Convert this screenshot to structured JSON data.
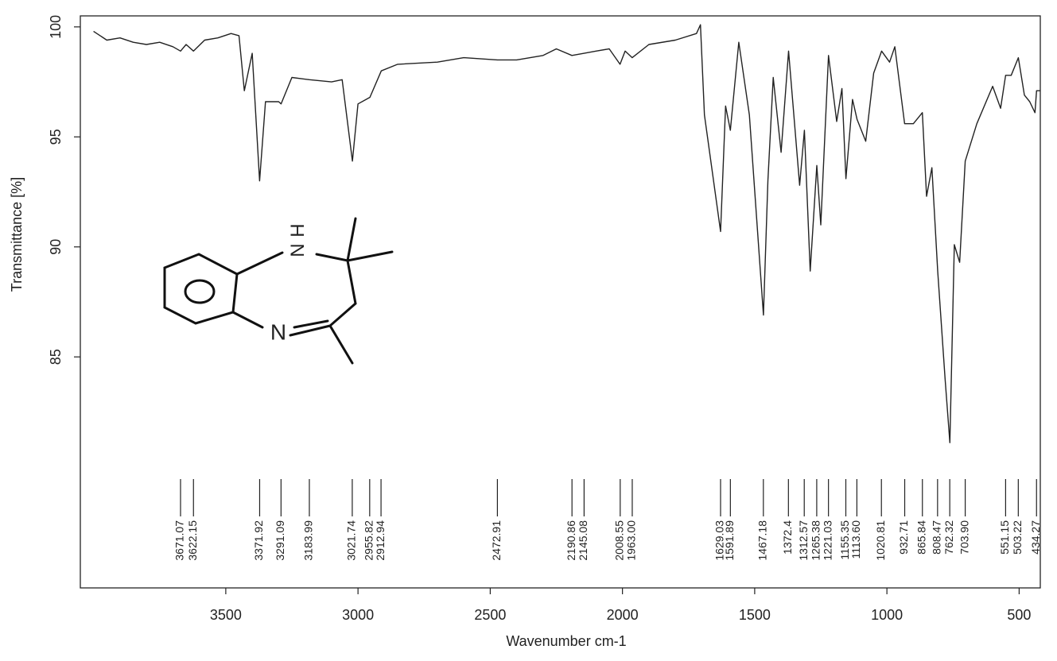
{
  "chart_data": {
    "type": "line",
    "y_label": "Transmittance [%]",
    "x_label": "Wavenumber cm-1",
    "x": [
      4000,
      3950,
      3900,
      3850,
      3800,
      3750,
      3700,
      3671,
      3650,
      3622,
      3580,
      3530,
      3480,
      3450,
      3430,
      3400,
      3372,
      3350,
      3300,
      3291,
      3250,
      3184,
      3100,
      3060,
      3021,
      3000,
      2955,
      2912,
      2850,
      2700,
      2600,
      2473,
      2400,
      2300,
      2250,
      2191,
      2145,
      2100,
      2050,
      2009,
      1990,
      1963,
      1900,
      1800,
      1720,
      1705,
      1690,
      1629,
      1610,
      1592,
      1560,
      1520,
      1467,
      1450,
      1430,
      1400,
      1372,
      1330,
      1312,
      1290,
      1265,
      1250,
      1221,
      1190,
      1170,
      1155,
      1130,
      1113,
      1080,
      1050,
      1020,
      990,
      970,
      933,
      900,
      866,
      850,
      830,
      808,
      780,
      762,
      745,
      725,
      704,
      660,
      600,
      570,
      551,
      530,
      503,
      480,
      460,
      440,
      434,
      420
    ],
    "values": [
      99.8,
      99.4,
      99.5,
      99.3,
      99.2,
      99.3,
      99.1,
      98.9,
      99.2,
      98.9,
      99.4,
      99.5,
      99.7,
      99.6,
      97.1,
      98.8,
      93.0,
      96.6,
      96.6,
      96.5,
      97.7,
      97.6,
      97.5,
      97.6,
      93.9,
      96.5,
      96.8,
      98.0,
      98.3,
      98.4,
      98.6,
      98.5,
      98.5,
      98.7,
      99.0,
      98.7,
      98.8,
      98.9,
      99.0,
      98.3,
      98.9,
      98.6,
      99.2,
      99.4,
      99.7,
      100.1,
      96.0,
      90.7,
      96.4,
      95.3,
      99.3,
      96.0,
      86.9,
      93.0,
      97.7,
      94.3,
      98.9,
      92.8,
      95.3,
      88.9,
      93.7,
      91.0,
      98.7,
      95.7,
      97.2,
      93.1,
      96.7,
      95.8,
      94.8,
      97.9,
      98.9,
      98.4,
      99.1,
      95.6,
      95.6,
      96.1,
      92.3,
      93.6,
      88.9,
      84.0,
      81.1,
      90.1,
      89.3,
      93.9,
      95.6,
      97.3,
      96.3,
      97.8,
      97.8,
      98.6,
      96.9,
      96.6,
      96.1,
      97.1,
      97.1
    ],
    "color": "#222222",
    "xlim": [
      4050,
      420
    ],
    "ylim": [
      74.5,
      100.5
    ],
    "xticks": [
      3500,
      3000,
      2500,
      2000,
      1500,
      1000,
      500
    ],
    "yticks": [
      85,
      90,
      95,
      100
    ],
    "peaks": [
      3671.07,
      3622.15,
      3371.92,
      3291.09,
      3183.99,
      3021.74,
      2955.82,
      2912.94,
      2472.91,
      2190.86,
      2145.08,
      2008.55,
      {
        "value": 1963,
        "label": "1963.00"
      },
      1629.03,
      1591.89,
      1467.18,
      1372.4,
      1312.57,
      1265.38,
      1221.03,
      1155.35,
      {
        "value": 1113.6,
        "label": "1113.60"
      },
      1020.81,
      932.71,
      865.84,
      808.47,
      762.32,
      {
        "value": 703.9,
        "label": "703.90"
      },
      551.15,
      503.22,
      434.27
    ]
  },
  "structure": {
    "atoms": [
      "H",
      "N",
      "N"
    ]
  }
}
